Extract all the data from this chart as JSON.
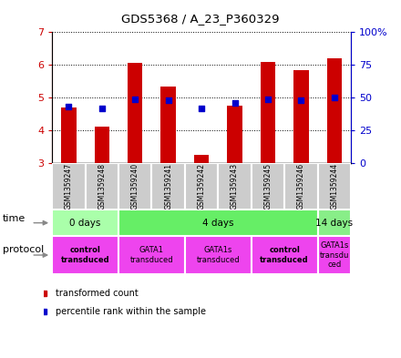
{
  "title": "GDS5368 / A_23_P360329",
  "samples": [
    "GSM1359247",
    "GSM1359248",
    "GSM1359240",
    "GSM1359241",
    "GSM1359242",
    "GSM1359243",
    "GSM1359245",
    "GSM1359246",
    "GSM1359244"
  ],
  "transformed_counts": [
    4.7,
    4.1,
    6.05,
    5.35,
    3.25,
    4.75,
    6.1,
    5.85,
    6.2
  ],
  "percentile_ranks": [
    43,
    42,
    49,
    48,
    42,
    46,
    49,
    48,
    50
  ],
  "ylim": [
    3,
    7
  ],
  "y2lim": [
    0,
    100
  ],
  "y_ticks": [
    3,
    4,
    5,
    6,
    7
  ],
  "y2_ticks": [
    0,
    25,
    50,
    75,
    100
  ],
  "y2_tick_labels": [
    "0",
    "25",
    "50",
    "75",
    "100%"
  ],
  "bar_color": "#cc0000",
  "dot_color": "#0000cc",
  "bar_width": 0.45,
  "dot_size": 25,
  "time_groups": [
    {
      "label": "0 days",
      "start": 0,
      "end": 2,
      "color": "#aaffaa"
    },
    {
      "label": "4 days",
      "start": 2,
      "end": 8,
      "color": "#66ee66"
    },
    {
      "label": "14 days",
      "start": 8,
      "end": 9,
      "color": "#88ee88"
    }
  ],
  "protocol_groups": [
    {
      "label": "control\ntransduced",
      "start": 0,
      "end": 2,
      "color": "#ee44ee",
      "bold": true
    },
    {
      "label": "GATA1\ntransduced",
      "start": 2,
      "end": 4,
      "color": "#ee44ee",
      "bold": false
    },
    {
      "label": "GATA1s\ntransduced",
      "start": 4,
      "end": 6,
      "color": "#ee44ee",
      "bold": false
    },
    {
      "label": "control\ntransduced",
      "start": 6,
      "end": 8,
      "color": "#ee44ee",
      "bold": true
    },
    {
      "label": "GATA1s\ntransdu\nced",
      "start": 8,
      "end": 9,
      "color": "#ee44ee",
      "bold": false
    }
  ],
  "ylabel_left_color": "#cc0000",
  "ylabel_right_color": "#0000cc",
  "background_plot": "#ffffff",
  "background_sample": "#cccccc",
  "legend_items": [
    {
      "label": "transformed count",
      "color": "#cc0000"
    },
    {
      "label": "percentile rank within the sample",
      "color": "#0000cc"
    }
  ]
}
